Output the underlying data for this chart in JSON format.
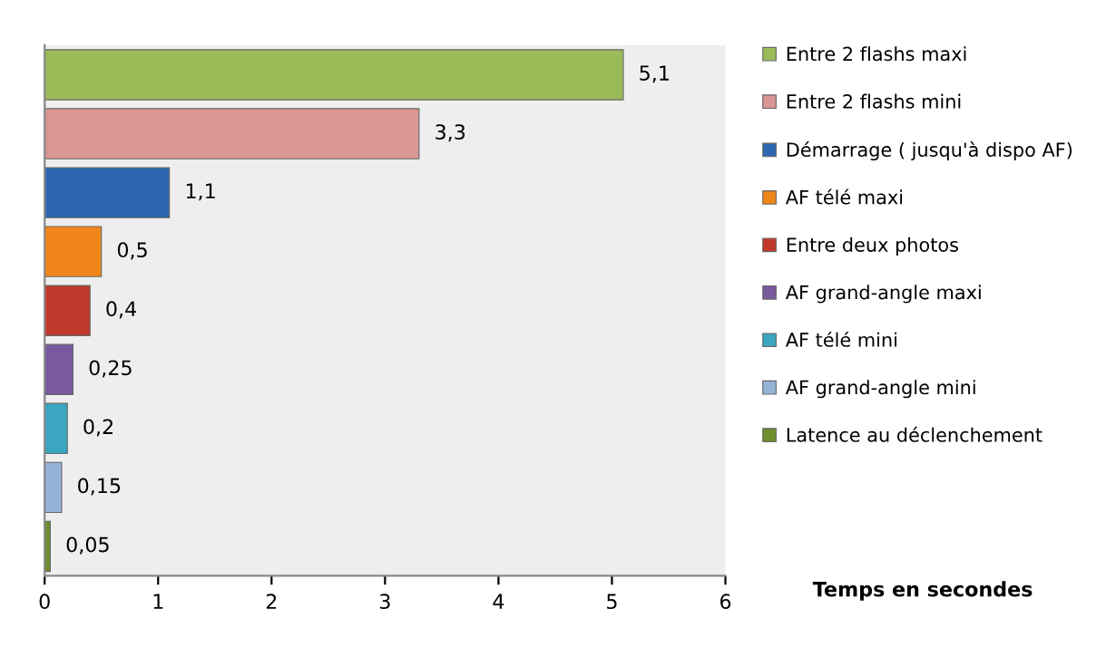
{
  "chart_data": {
    "type": "bar",
    "orientation": "horizontal",
    "xlabel": "Temps en secondes",
    "categories": [
      null,
      null,
      null,
      null,
      null,
      null,
      null,
      null,
      null
    ],
    "series": [
      {
        "name": "Entre 2 flashs maxi",
        "color": "#9bbb59",
        "values": [
          5.1,
          null,
          null,
          null,
          null,
          null,
          null,
          null,
          null
        ],
        "value_labels": [
          "5,1",
          null,
          null,
          null,
          null,
          null,
          null,
          null,
          null
        ]
      },
      {
        "name": "Entre 2 flashs mini",
        "color": "#d99694",
        "values": [
          null,
          3.3,
          null,
          null,
          null,
          null,
          null,
          null,
          null
        ],
        "value_labels": [
          null,
          "3,3",
          null,
          null,
          null,
          null,
          null,
          null,
          null
        ]
      },
      {
        "name": "Démarrage ( jusqu'à dispo AF)",
        "color": "#2e67b1",
        "values": [
          null,
          null,
          1.1,
          null,
          null,
          null,
          null,
          null,
          null
        ],
        "value_labels": [
          null,
          null,
          "1,1",
          null,
          null,
          null,
          null,
          null,
          null
        ]
      },
      {
        "name": "AF télé maxi",
        "color": "#f0861a",
        "values": [
          null,
          null,
          null,
          0.5,
          null,
          null,
          null,
          null,
          null
        ],
        "value_labels": [
          null,
          null,
          null,
          "0,5",
          null,
          null,
          null,
          null,
          null
        ]
      },
      {
        "name": "Entre deux photos",
        "color": "#c0392b",
        "values": [
          null,
          null,
          null,
          null,
          0.4,
          null,
          null,
          null,
          null
        ],
        "value_labels": [
          null,
          null,
          null,
          null,
          "0,4",
          null,
          null,
          null,
          null
        ]
      },
      {
        "name": "AF grand-angle maxi",
        "color": "#7a5a9e",
        "values": [
          null,
          null,
          null,
          null,
          null,
          0.25,
          null,
          null,
          null
        ],
        "value_labels": [
          null,
          null,
          null,
          null,
          null,
          "0,25",
          null,
          null,
          null
        ]
      },
      {
        "name": "AF télé mini",
        "color": "#3aa6c0",
        "values": [
          null,
          null,
          null,
          null,
          null,
          null,
          0.2,
          null,
          null
        ],
        "value_labels": [
          null,
          null,
          null,
          null,
          null,
          null,
          "0,2",
          null,
          null
        ]
      },
      {
        "name": "AF grand-angle mini",
        "color": "#95b3d7",
        "values": [
          null,
          null,
          null,
          null,
          null,
          null,
          null,
          0.15,
          null
        ],
        "value_labels": [
          null,
          null,
          null,
          null,
          null,
          null,
          null,
          "0,15",
          null
        ]
      },
      {
        "name": "Latence au déclenchement",
        "color": "#6f8f2f",
        "values": [
          null,
          null,
          null,
          null,
          null,
          null,
          null,
          null,
          0.05
        ],
        "value_labels": [
          null,
          null,
          null,
          null,
          null,
          null,
          null,
          null,
          "0,05"
        ]
      }
    ],
    "xlim": [
      0,
      6
    ],
    "xticks": [
      0,
      1,
      2,
      3,
      4,
      5,
      6
    ],
    "tick_labels": "x",
    "grid": false,
    "legend": "right"
  }
}
